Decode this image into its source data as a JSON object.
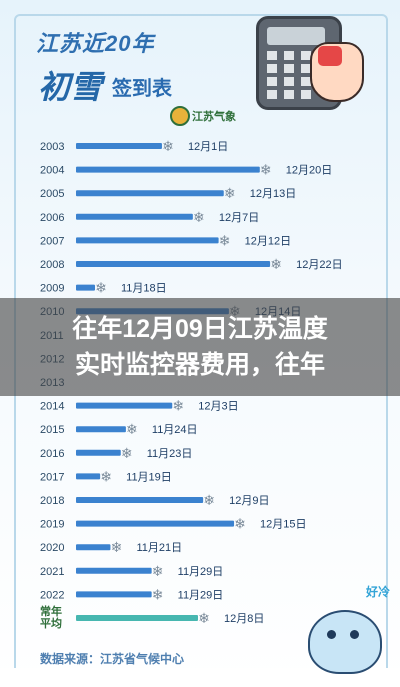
{
  "poster": {
    "title_line1": "江苏近20年",
    "title_main": "初雪",
    "title_sub": "签到表",
    "agency_badge": "江苏气象",
    "source_text": "数据来源：江苏省气候中心",
    "sticker_text": "好冷"
  },
  "headline": {
    "line1": "往年12月09日江苏温度",
    "line2": "实时监控器费用，往年"
  },
  "chart_data": {
    "type": "bar",
    "orientation": "horizontal",
    "categories": [
      "2003",
      "2004",
      "2005",
      "2006",
      "2007",
      "2008",
      "2009",
      "2010",
      "2011",
      "2012",
      "2013",
      "2014",
      "2015",
      "2016",
      "2017",
      "2018",
      "2019",
      "2020",
      "2021",
      "2022",
      "常年平均"
    ],
    "values_date_labels": [
      "12月1日",
      "12月20日",
      "12月13日",
      "12月7日",
      "12月12日",
      "12月22日",
      "11月18日",
      "12月14日",
      "",
      "",
      "",
      "12月3日",
      "11月24日",
      "11月23日",
      "11月19日",
      "12月9日",
      "12月15日",
      "11月21日",
      "11月29日",
      "11月29日",
      "12月8日"
    ],
    "series": [
      {
        "values": [
          "12-01",
          "12-20",
          "12-13",
          "12-07",
          "12-12",
          "12-22",
          "11-18",
          "12-14",
          null,
          null,
          null,
          "12-03",
          "11-24",
          "11-23",
          "11-19",
          "12-09",
          "12-15",
          "11-21",
          "11-29",
          "11-29",
          "12-08"
        ]
      }
    ],
    "colors": {
      "bar": "#3b82cf",
      "average_bar": "#47b7b0",
      "frame": "#b9d8ea"
    },
    "grid": false
  }
}
